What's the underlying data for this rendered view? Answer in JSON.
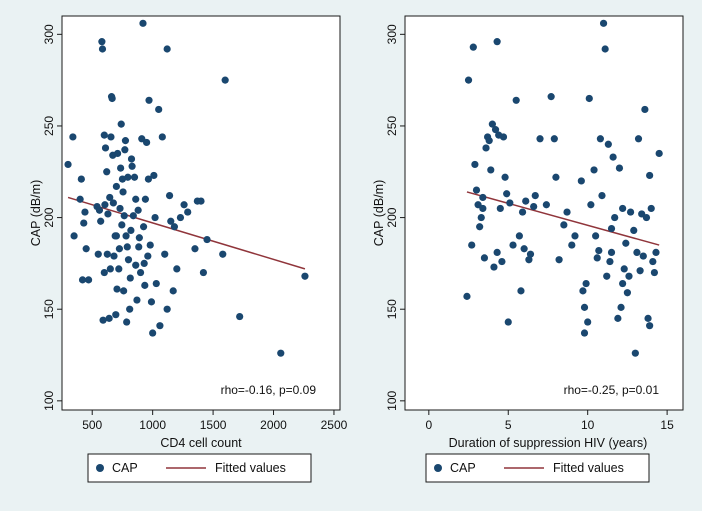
{
  "colors": {
    "background": "#eaf2f3",
    "marker": "#1a476f",
    "fit_line": "#90353b",
    "plot_area": "#ffffff"
  },
  "chart_data": [
    {
      "type": "scatter",
      "title": "",
      "xlabel": "CD4 cell count",
      "ylabel": "CAP (dB/m)",
      "xlim": [
        250,
        2550
      ],
      "ylim": [
        95,
        310
      ],
      "xticks": [
        500,
        1000,
        1500,
        2000,
        2500
      ],
      "yticks": [
        100,
        150,
        200,
        250,
        300
      ],
      "xtick_labels": [
        "500",
        "1000",
        "1500",
        "2000",
        "2500"
      ],
      "ytick_labels": [
        "100",
        "150",
        "200",
        "250",
        "300"
      ],
      "annotation": "rho=-0.16, p=0.09",
      "legend": {
        "marker_label": "CAP",
        "line_label": "Fitted values",
        "placement": "bottom"
      },
      "series": [
        {
          "name": "CAP",
          "points": [
            [
              300,
              229
            ],
            [
              340,
              244
            ],
            [
              350,
              190
            ],
            [
              400,
              210
            ],
            [
              410,
              221
            ],
            [
              420,
              166
            ],
            [
              430,
              197
            ],
            [
              440,
              203
            ],
            [
              450,
              183
            ],
            [
              470,
              166
            ],
            [
              540,
              206
            ],
            [
              550,
              180
            ],
            [
              560,
              204
            ],
            [
              570,
              198
            ],
            [
              580,
              296
            ],
            [
              585,
              292
            ],
            [
              590,
              144
            ],
            [
              600,
              245
            ],
            [
              605,
              207
            ],
            [
              610,
              238
            ],
            [
              620,
              225
            ],
            [
              625,
              180
            ],
            [
              630,
              202
            ],
            [
              640,
              145
            ],
            [
              645,
              211
            ],
            [
              650,
              172
            ],
            [
              655,
              244
            ],
            [
              660,
              266
            ],
            [
              665,
              265
            ],
            [
              670,
              234
            ],
            [
              675,
              208
            ],
            [
              680,
              179
            ],
            [
              690,
              190
            ],
            [
              695,
              147
            ],
            [
              700,
              217
            ],
            [
              705,
              161
            ],
            [
              710,
              235
            ],
            [
              720,
              172
            ],
            [
              725,
              183
            ],
            [
              730,
              205
            ],
            [
              735,
              227
            ],
            [
              740,
              251
            ],
            [
              745,
              196
            ],
            [
              750,
              221
            ],
            [
              755,
              214
            ],
            [
              760,
              160
            ],
            [
              765,
              201
            ],
            [
              770,
              237
            ],
            [
              775,
              242
            ],
            [
              780,
              190
            ],
            [
              785,
              143
            ],
            [
              790,
              184
            ],
            [
              795,
              222
            ],
            [
              800,
              177
            ],
            [
              810,
              150
            ],
            [
              815,
              167
            ],
            [
              820,
              193
            ],
            [
              825,
              232
            ],
            [
              830,
              228
            ],
            [
              840,
              201
            ],
            [
              850,
              222
            ],
            [
              860,
              174
            ],
            [
              870,
              155
            ],
            [
              880,
              204
            ],
            [
              885,
              184
            ],
            [
              890,
              189
            ],
            [
              900,
              170
            ],
            [
              910,
              243
            ],
            [
              920,
              306
            ],
            [
              925,
              195
            ],
            [
              930,
              175
            ],
            [
              935,
              163
            ],
            [
              940,
              210
            ],
            [
              950,
              241
            ],
            [
              960,
              179
            ],
            [
              965,
              221
            ],
            [
              970,
              264
            ],
            [
              980,
              185
            ],
            [
              990,
              154
            ],
            [
              1000,
              137
            ],
            [
              1010,
              223
            ],
            [
              1020,
              200
            ],
            [
              1030,
              164
            ],
            [
              1050,
              259
            ],
            [
              1060,
              141
            ],
            [
              1080,
              244
            ],
            [
              1100,
              180
            ],
            [
              1120,
              292
            ],
            [
              1140,
              212
            ],
            [
              1150,
              198
            ],
            [
              1170,
              160
            ],
            [
              1200,
              172
            ],
            [
              1230,
              200
            ],
            [
              1260,
              207
            ],
            [
              1290,
              203
            ],
            [
              1370,
              209
            ],
            [
              1400,
              209
            ],
            [
              1420,
              170
            ],
            [
              1450,
              188
            ],
            [
              1580,
              180
            ],
            [
              1600,
              275
            ],
            [
              1720,
              146
            ],
            [
              2060,
              126
            ],
            [
              2260,
              168
            ],
            [
              1180,
              195
            ],
            [
              1350,
              183
            ],
            [
              1120,
              150
            ],
            [
              600,
              170
            ],
            [
              700,
              190
            ],
            [
              860,
              210
            ]
          ]
        },
        {
          "name": "Fitted values",
          "line": [
            [
              300,
              211
            ],
            [
              2260,
              172
            ]
          ]
        }
      ]
    },
    {
      "type": "scatter",
      "title": "",
      "xlabel": "Duration of suppression HIV (years)",
      "ylabel": "CAP (dB/m)",
      "xlim": [
        -1.5,
        16
      ],
      "ylim": [
        95,
        310
      ],
      "xticks": [
        0,
        5,
        10,
        15
      ],
      "yticks": [
        100,
        150,
        200,
        250,
        300
      ],
      "xtick_labels": [
        "0",
        "5",
        "10",
        "15"
      ],
      "ytick_labels": [
        "100",
        "150",
        "200",
        "250",
        "300"
      ],
      "annotation": "rho=-0.25, p=0.01",
      "legend": {
        "marker_label": "CAP",
        "line_label": "Fitted values",
        "placement": "bottom"
      },
      "series": [
        {
          "name": "CAP",
          "points": [
            [
              2.4,
              157
            ],
            [
              2.5,
              275
            ],
            [
              2.7,
              185
            ],
            [
              2.8,
              293
            ],
            [
              2.9,
              229
            ],
            [
              3.0,
              215
            ],
            [
              3.1,
              207
            ],
            [
              3.2,
              195
            ],
            [
              3.3,
              200
            ],
            [
              3.4,
              211
            ],
            [
              3.5,
              178
            ],
            [
              3.6,
              238
            ],
            [
              3.7,
              244
            ],
            [
              3.8,
              242
            ],
            [
              3.9,
              226
            ],
            [
              4.0,
              251
            ],
            [
              4.1,
              173
            ],
            [
              4.2,
              248
            ],
            [
              4.3,
              296
            ],
            [
              4.4,
              245
            ],
            [
              4.5,
              205
            ],
            [
              4.6,
              176
            ],
            [
              4.7,
              244
            ],
            [
              4.8,
              222
            ],
            [
              4.9,
              213
            ],
            [
              5.0,
              143
            ],
            [
              5.1,
              208
            ],
            [
              5.3,
              185
            ],
            [
              5.5,
              264
            ],
            [
              5.7,
              190
            ],
            [
              5.8,
              160
            ],
            [
              6.0,
              183
            ],
            [
              6.1,
              209
            ],
            [
              6.3,
              177
            ],
            [
              6.4,
              180
            ],
            [
              6.7,
              212
            ],
            [
              7.0,
              243
            ],
            [
              7.4,
              207
            ],
            [
              7.7,
              266
            ],
            [
              7.9,
              243
            ],
            [
              8.0,
              222
            ],
            [
              8.2,
              177
            ],
            [
              8.7,
              203
            ],
            [
              9.0,
              185
            ],
            [
              9.2,
              190
            ],
            [
              9.6,
              220
            ],
            [
              9.7,
              160
            ],
            [
              9.8,
              137
            ],
            [
              9.9,
              164
            ],
            [
              10.0,
              143
            ],
            [
              10.1,
              265
            ],
            [
              10.2,
              207
            ],
            [
              10.4,
              226
            ],
            [
              10.5,
              190
            ],
            [
              10.6,
              178
            ],
            [
              10.7,
              182
            ],
            [
              10.8,
              243
            ],
            [
              10.9,
              212
            ],
            [
              11.0,
              306
            ],
            [
              11.1,
              292
            ],
            [
              11.2,
              168
            ],
            [
              11.3,
              240
            ],
            [
              11.4,
              176
            ],
            [
              11.5,
              194
            ],
            [
              11.6,
              233
            ],
            [
              11.7,
              200
            ],
            [
              11.9,
              145
            ],
            [
              12.0,
              227
            ],
            [
              12.1,
              151
            ],
            [
              12.2,
              205
            ],
            [
              12.3,
              172
            ],
            [
              12.4,
              186
            ],
            [
              12.5,
              159
            ],
            [
              12.6,
              168
            ],
            [
              12.7,
              203
            ],
            [
              12.9,
              193
            ],
            [
              13.0,
              126
            ],
            [
              13.1,
              181
            ],
            [
              13.2,
              243
            ],
            [
              13.3,
              171
            ],
            [
              13.4,
              202
            ],
            [
              13.5,
              179
            ],
            [
              13.6,
              259
            ],
            [
              13.7,
              200
            ],
            [
              13.8,
              145
            ],
            [
              13.9,
              141
            ],
            [
              14.0,
              205
            ],
            [
              14.1,
              176
            ],
            [
              14.2,
              170
            ],
            [
              14.3,
              181
            ],
            [
              14.5,
              235
            ],
            [
              13.9,
              223
            ],
            [
              12.2,
              164
            ],
            [
              9.8,
              151
            ],
            [
              11.5,
              181
            ],
            [
              6.6,
              206
            ],
            [
              8.5,
              196
            ],
            [
              3.4,
              205
            ],
            [
              4.3,
              181
            ],
            [
              5.9,
              203
            ]
          ]
        },
        {
          "name": "Fitted values",
          "line": [
            [
              2.4,
              214
            ],
            [
              14.5,
              185
            ]
          ]
        }
      ]
    }
  ]
}
